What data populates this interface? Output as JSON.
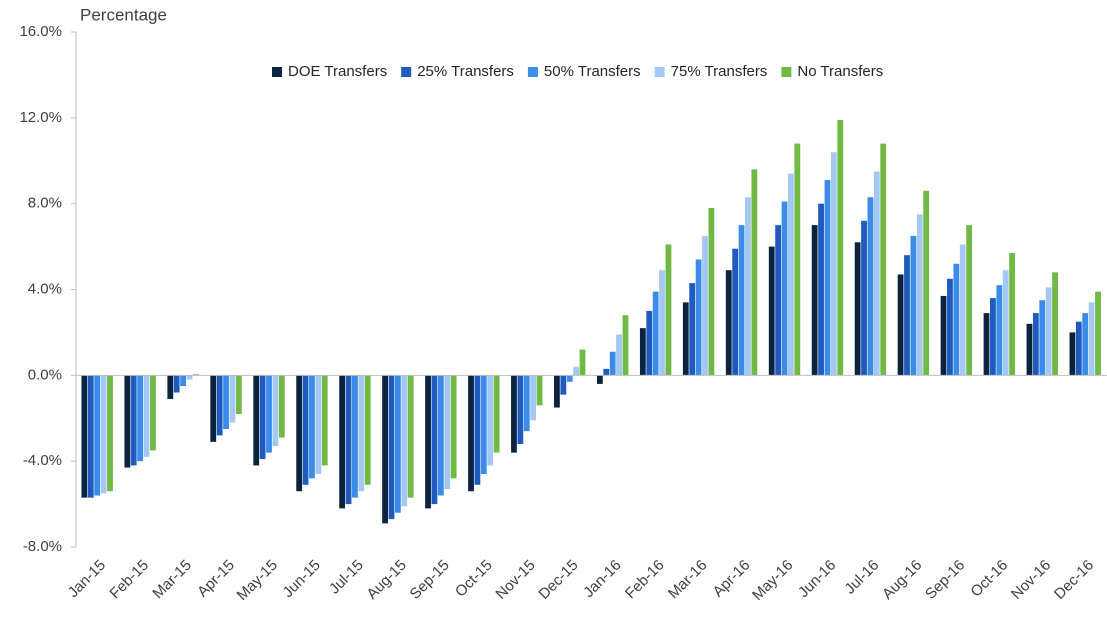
{
  "chart_data": {
    "type": "bar",
    "y_label": "Percentage",
    "categories": [
      "Jan-15",
      "Feb-15",
      "Mar-15",
      "Apr-15",
      "May-15",
      "Jun-15",
      "Jul-15",
      "Aug-15",
      "Sep-15",
      "Oct-15",
      "Nov-15",
      "Dec-15",
      "Jan-16",
      "Feb-16",
      "Mar-16",
      "Apr-16",
      "May-16",
      "Jun-16",
      "Jul-16",
      "Aug-16",
      "Sep-16",
      "Oct-16",
      "Nov-16",
      "Dec-16"
    ],
    "series": [
      {
        "name": "DOE Transfers",
        "color": "#0c2340",
        "values": [
          -5.7,
          -4.3,
          -1.1,
          -3.1,
          -4.2,
          -5.4,
          -6.2,
          -6.9,
          -6.2,
          -5.4,
          -3.6,
          -1.5,
          -0.4,
          2.2,
          3.4,
          4.9,
          6.0,
          7.0,
          6.2,
          4.7,
          3.7,
          2.9,
          2.4,
          2.0
        ]
      },
      {
        "name": "25% Transfers",
        "color": "#1f5bbf",
        "values": [
          -5.7,
          -4.2,
          -0.8,
          -2.8,
          -3.9,
          -5.1,
          -6.0,
          -6.7,
          -6.0,
          -5.1,
          -3.2,
          -0.9,
          0.3,
          3.0,
          4.3,
          5.9,
          7.0,
          8.0,
          7.2,
          5.6,
          4.5,
          3.6,
          2.9,
          2.5
        ]
      },
      {
        "name": "50% Transfers",
        "color": "#3b8beb",
        "values": [
          -5.6,
          -4.0,
          -0.5,
          -2.5,
          -3.6,
          -4.8,
          -5.7,
          -6.4,
          -5.6,
          -4.6,
          -2.6,
          -0.3,
          1.1,
          3.9,
          5.4,
          7.0,
          8.1,
          9.1,
          8.3,
          6.5,
          5.2,
          4.2,
          3.5,
          2.9
        ]
      },
      {
        "name": "75% Transfers",
        "color": "#a4c8f5",
        "values": [
          -5.5,
          -3.8,
          -0.2,
          -2.2,
          -3.3,
          -4.6,
          -5.4,
          -6.1,
          -5.3,
          -4.2,
          -2.1,
          0.4,
          1.9,
          4.9,
          6.5,
          8.3,
          9.4,
          10.4,
          9.5,
          7.5,
          6.1,
          4.9,
          4.1,
          3.4
        ]
      },
      {
        "name": "No Transfers",
        "color": "#70b944",
        "values": [
          -5.4,
          -3.5,
          0.05,
          -1.8,
          -2.9,
          -4.2,
          -5.1,
          -5.7,
          -4.8,
          -3.6,
          -1.4,
          1.2,
          2.8,
          6.1,
          7.8,
          9.6,
          10.8,
          11.9,
          10.8,
          8.6,
          7.0,
          5.7,
          4.8,
          3.9
        ]
      }
    ],
    "ylim": [
      -8,
      16
    ],
    "yticks": [
      {
        "value": -8,
        "label": "-8.0%"
      },
      {
        "value": -4,
        "label": "-4.0%"
      },
      {
        "value": 0,
        "label": "0.0%"
      },
      {
        "value": 4,
        "label": "4.0%"
      },
      {
        "value": 8,
        "label": "8.0%"
      },
      {
        "value": 12,
        "label": "12.0%"
      },
      {
        "value": 16,
        "label": "16.0%"
      }
    ],
    "grid": false,
    "legend": "top"
  }
}
